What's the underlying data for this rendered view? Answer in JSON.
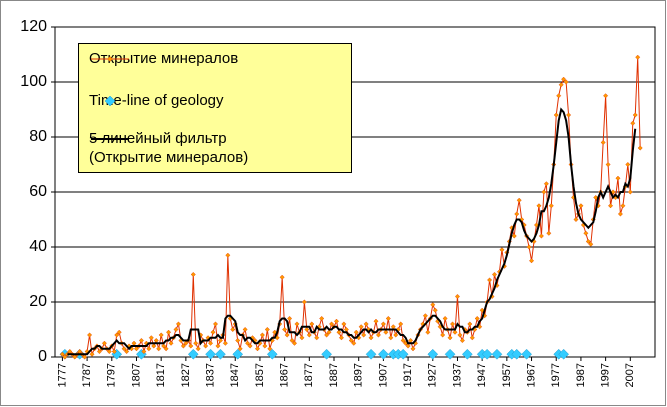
{
  "chart_data": {
    "type": "line",
    "x": [
      1777,
      1778,
      1779,
      1780,
      1781,
      1782,
      1783,
      1784,
      1785,
      1786,
      1787,
      1788,
      1789,
      1790,
      1791,
      1792,
      1793,
      1794,
      1795,
      1796,
      1797,
      1798,
      1799,
      1800,
      1801,
      1802,
      1803,
      1804,
      1805,
      1806,
      1807,
      1808,
      1809,
      1810,
      1811,
      1812,
      1813,
      1814,
      1815,
      1816,
      1817,
      1818,
      1819,
      1820,
      1821,
      1822,
      1823,
      1824,
      1825,
      1826,
      1827,
      1828,
      1829,
      1830,
      1831,
      1832,
      1833,
      1834,
      1835,
      1836,
      1837,
      1838,
      1839,
      1840,
      1841,
      1842,
      1843,
      1844,
      1845,
      1846,
      1847,
      1848,
      1849,
      1850,
      1851,
      1852,
      1853,
      1854,
      1855,
      1856,
      1857,
      1858,
      1859,
      1860,
      1861,
      1862,
      1863,
      1864,
      1865,
      1866,
      1867,
      1868,
      1869,
      1870,
      1871,
      1872,
      1873,
      1874,
      1875,
      1876,
      1877,
      1878,
      1879,
      1880,
      1881,
      1882,
      1883,
      1884,
      1885,
      1886,
      1887,
      1888,
      1889,
      1890,
      1891,
      1892,
      1893,
      1894,
      1895,
      1896,
      1897,
      1898,
      1899,
      1900,
      1901,
      1902,
      1903,
      1904,
      1905,
      1906,
      1907,
      1908,
      1909,
      1910,
      1911,
      1912,
      1913,
      1914,
      1915,
      1916,
      1917,
      1918,
      1919,
      1920,
      1921,
      1922,
      1923,
      1924,
      1925,
      1926,
      1927,
      1928,
      1929,
      1930,
      1931,
      1932,
      1933,
      1934,
      1935,
      1936,
      1937,
      1938,
      1939,
      1940,
      1941,
      1942,
      1943,
      1944,
      1945,
      1946,
      1947,
      1948,
      1949,
      1950,
      1951,
      1952,
      1953,
      1954,
      1955,
      1956,
      1957,
      1958,
      1959,
      1960,
      1961,
      1962,
      1963,
      1964,
      1965,
      1966,
      1967,
      1968,
      1969,
      1970,
      1971,
      1972,
      1973,
      1974,
      1975,
      1976,
      1977,
      1978,
      1979,
      1980,
      1981,
      1982,
      1983,
      1984,
      1985,
      1986,
      1987,
      1988,
      1989,
      1990,
      1991,
      1992,
      1993,
      1994,
      1995,
      1996,
      1997,
      1998,
      1999,
      2000,
      2001,
      2002,
      2003,
      2004,
      2005,
      2006,
      2007,
      2008,
      2009,
      2010,
      2011
    ],
    "series": [
      {
        "name": "Открытие минералов",
        "color": "#e03000",
        "marker_color": "#ff9900",
        "style": "line-marker",
        "values": [
          1,
          0,
          1,
          2,
          1,
          0,
          1,
          2,
          1,
          0,
          2,
          8,
          1,
          3,
          4,
          2,
          3,
          5,
          3,
          2,
          4,
          2,
          8,
          9,
          5,
          3,
          2,
          4,
          3,
          5,
          3,
          4,
          6,
          2,
          5,
          3,
          7,
          4,
          6,
          3,
          8,
          4,
          3,
          9,
          5,
          7,
          10,
          12,
          6,
          4,
          5,
          6,
          4,
          30,
          5,
          3,
          8,
          6,
          4,
          7,
          5,
          9,
          12,
          4,
          6,
          8,
          5,
          37,
          14,
          10,
          12,
          6,
          3,
          8,
          10,
          5,
          4,
          7,
          6,
          3,
          5,
          8,
          4,
          10,
          3,
          6,
          9,
          7,
          12,
          29,
          10,
          8,
          14,
          6,
          5,
          12,
          9,
          7,
          20,
          10,
          8,
          12,
          9,
          7,
          11,
          14,
          10,
          8,
          9,
          12,
          11,
          13,
          9,
          7,
          12,
          10,
          8,
          6,
          5,
          9,
          7,
          11,
          8,
          12,
          10,
          7,
          9,
          13,
          8,
          10,
          12,
          9,
          14,
          7,
          11,
          8,
          10,
          12,
          6,
          5,
          4,
          6,
          3,
          5,
          8,
          10,
          12,
          15,
          9,
          14,
          19,
          17,
          13,
          11,
          8,
          14,
          10,
          7,
          12,
          9,
          22,
          8,
          6,
          10,
          9,
          12,
          7,
          10,
          14,
          11,
          17,
          15,
          20,
          28,
          22,
          30,
          26,
          31,
          39,
          33,
          38,
          42,
          47,
          44,
          52,
          57,
          50,
          48,
          44,
          40,
          35,
          42,
          48,
          55,
          44,
          60,
          63,
          45,
          55,
          70,
          88,
          95,
          99,
          101,
          100,
          88,
          70,
          58,
          50,
          52,
          55,
          48,
          45,
          42,
          41,
          50,
          58,
          55,
          60,
          78,
          95,
          70,
          55,
          60,
          58,
          65,
          52,
          55,
          62,
          70,
          60,
          85,
          88,
          109,
          76
        ]
      },
      {
        "name": "Time-line of geology",
        "color": "#33ccff",
        "style": "scatter",
        "x": [
          1778,
          1784,
          1799,
          1809,
          1830,
          1837,
          1841,
          1848,
          1862,
          1884,
          1902,
          1907,
          1911,
          1913,
          1915,
          1927,
          1934,
          1941,
          1947,
          1949,
          1953,
          1959,
          1961,
          1965,
          1978,
          1980
        ],
        "values": [
          1,
          1,
          1,
          1,
          1,
          1,
          1,
          1,
          1,
          1,
          1,
          1,
          1,
          1,
          1,
          1,
          1,
          1,
          1,
          1,
          1,
          1,
          1,
          1,
          1,
          1
        ]
      },
      {
        "name": "5 линейный фильтр (Открытие минералов)",
        "color": "#000000",
        "style": "line",
        "values": [
          null,
          null,
          1,
          1,
          1,
          1,
          1,
          1,
          1,
          1,
          1,
          2,
          3,
          3,
          4,
          4,
          3,
          3,
          3,
          3,
          4,
          5,
          6,
          5,
          5,
          5,
          4,
          3,
          4,
          4,
          4,
          4,
          4,
          4,
          4,
          5,
          5,
          5,
          5,
          5,
          5,
          5,
          6,
          6,
          7,
          7,
          8,
          8,
          7,
          6,
          6,
          6,
          10,
          10,
          10,
          10,
          5,
          6,
          6,
          6,
          7,
          7,
          7,
          8,
          7,
          7,
          14,
          15,
          15,
          14,
          13,
          9,
          8,
          8,
          6,
          7,
          7,
          6,
          5,
          5,
          6,
          6,
          6,
          6,
          6,
          7,
          7,
          9,
          13,
          14,
          14,
          13,
          9,
          9,
          9,
          8,
          9,
          11,
          11,
          11,
          11,
          9,
          9,
          11,
          10,
          10,
          10,
          11,
          10,
          10,
          11,
          11,
          10,
          10,
          9,
          9,
          8,
          8,
          7,
          7,
          8,
          9,
          10,
          10,
          9,
          10,
          9,
          9,
          10,
          10,
          10,
          10,
          10,
          10,
          10,
          10,
          9,
          8,
          8,
          7,
          5,
          5,
          5,
          6,
          8,
          10,
          11,
          12,
          13,
          14,
          15,
          15,
          14,
          13,
          11,
          10,
          10,
          10,
          10,
          10,
          12,
          11,
          11,
          9,
          9,
          10,
          10,
          11,
          11,
          13,
          14,
          17,
          20,
          21,
          23,
          25,
          28,
          30,
          32,
          34,
          37,
          41,
          45,
          48,
          50,
          50,
          49,
          46,
          44,
          43,
          42,
          43,
          45,
          48,
          53,
          53,
          55,
          58,
          63,
          70,
          78,
          86,
          90,
          89,
          86,
          80,
          70,
          62,
          56,
          52,
          50,
          49,
          48,
          47,
          48,
          49,
          53,
          58,
          60,
          58,
          60,
          62,
          60,
          58,
          59,
          58,
          60,
          60,
          63,
          62,
          65,
          75,
          83,
          null,
          null
        ]
      }
    ],
    "xlim": [
      1774,
      2017
    ],
    "xticks": [
      1777,
      1787,
      1797,
      1807,
      1817,
      1827,
      1837,
      1847,
      1857,
      1867,
      1877,
      1887,
      1897,
      1907,
      1917,
      1927,
      1937,
      1947,
      1957,
      1967,
      1977,
      1987,
      1997,
      2007
    ],
    "ylim": [
      0,
      120
    ],
    "yticks": [
      0,
      20,
      40,
      60,
      80,
      100,
      120
    ],
    "grid": true
  }
}
